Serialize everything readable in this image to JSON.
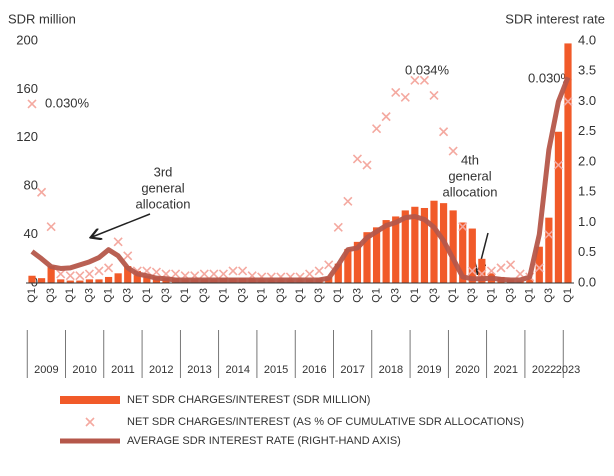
{
  "chart_data": {
    "type": "combo",
    "y_axis_title": "SDR million",
    "y2_axis_title": "SDR interest rate",
    "categories": [
      "Q1",
      null,
      "Q3",
      null,
      "Q1",
      null,
      "Q3",
      null,
      "Q1",
      null,
      "Q3",
      null,
      "Q1",
      null,
      "Q3",
      null,
      "Q1",
      null,
      "Q3",
      null,
      "Q1",
      null,
      "Q3",
      null,
      "Q1",
      null,
      "Q3",
      null,
      "Q1",
      null,
      "Q3",
      null,
      "Q1",
      null,
      "Q3",
      null,
      "Q1",
      null,
      "Q3",
      null,
      "Q1",
      null,
      "Q3",
      null,
      "Q1",
      null,
      "Q3",
      null,
      "Q1",
      null,
      "Q3",
      null,
      "Q1",
      null,
      "Q3",
      null,
      "Q1"
    ],
    "x_groups": [
      "2009",
      "2010",
      "2011",
      "2012",
      "2013",
      "2014",
      "2015",
      "2016",
      "2017",
      "2018",
      "2019",
      "2020",
      "2021",
      "2022",
      "2023"
    ],
    "ylim": [
      0,
      200
    ],
    "yticks": [
      0,
      40,
      80,
      120,
      160,
      200
    ],
    "y2lim": [
      0,
      4
    ],
    "y2ticks": [
      {
        "value": 0,
        "label": "0.0"
      },
      0.5,
      {
        "value": 1,
        "label": "1.0"
      },
      1.5,
      {
        "value": 2,
        "label": "2.0"
      },
      2.5,
      {
        "value": 3,
        "label": "3.0"
      },
      3.5,
      {
        "value": 4,
        "label": "4.0"
      }
    ],
    "series": [
      {
        "name": "NET SDR CHARGES/INTEREST (SDR MILLION)",
        "type": "bar",
        "color": "#f15a29",
        "values": [
          6,
          4,
          14,
          3,
          2,
          2,
          3,
          3,
          5,
          8,
          14,
          10,
          6,
          5,
          4,
          4,
          3,
          3,
          3,
          3,
          4,
          4,
          4,
          4,
          3,
          3,
          3,
          3,
          3,
          3,
          4,
          5,
          16,
          28,
          34,
          42,
          46,
          52,
          55,
          60,
          63,
          62,
          68,
          66,
          60,
          50,
          45,
          20,
          8,
          5,
          3,
          2,
          3,
          30,
          54,
          125,
          198
        ]
      },
      {
        "name": "NET SDR CHARGES/INTEREST (AS % OF CUMULATIVE SDR ALLOCATIONS)",
        "type": "scatter",
        "axis": "y2",
        "color": "#f4a9a0",
        "values": [
          2.96,
          1.5,
          0.93,
          0.15,
          0.12,
          0.12,
          0.15,
          0.2,
          0.25,
          0.68,
          0.45,
          0.2,
          0.2,
          0.18,
          0.15,
          0.15,
          0.12,
          0.12,
          0.15,
          0.15,
          0.15,
          0.2,
          0.2,
          0.12,
          0.1,
          0.1,
          0.1,
          0.1,
          0.1,
          0.15,
          0.2,
          0.3,
          0.92,
          1.35,
          2.05,
          1.95,
          2.55,
          2.75,
          3.15,
          3.07,
          3.35,
          3.35,
          3.1,
          2.5,
          2.18,
          0.93,
          0.2,
          0.15,
          0.2,
          0.25,
          0.3,
          0.15,
          0.1,
          0.25,
          0.8,
          1.95,
          3.0
        ]
      },
      {
        "name": "AVERAGE SDR INTEREST RATE (RIGHT-HAND AXIS)",
        "type": "line",
        "axis": "y2",
        "color": "#b5574a",
        "values": [
          0.52,
          0.4,
          0.27,
          0.24,
          0.25,
          0.3,
          0.35,
          0.42,
          0.55,
          0.45,
          0.25,
          0.15,
          0.12,
          0.08,
          0.07,
          0.05,
          0.05,
          0.05,
          0.05,
          0.05,
          0.05,
          0.05,
          0.05,
          0.05,
          0.05,
          0.05,
          0.05,
          0.05,
          0.05,
          0.05,
          0.05,
          0.08,
          0.3,
          0.55,
          0.58,
          0.75,
          0.85,
          0.95,
          1.0,
          1.08,
          1.1,
          1.05,
          0.92,
          0.7,
          0.4,
          0.1,
          0.07,
          0.07,
          0.08,
          0.06,
          0.05,
          0.05,
          0.1,
          0.8,
          2.2,
          3.0,
          3.4
        ]
      }
    ],
    "annotations": {
      "first_rate": "0.030%",
      "peak_rate": "0.034%",
      "last_rate": "0.030%",
      "third_allocation": [
        "3rd",
        "general",
        "allocation"
      ],
      "fourth_allocation": [
        "4th",
        "general",
        "allocation"
      ]
    }
  }
}
